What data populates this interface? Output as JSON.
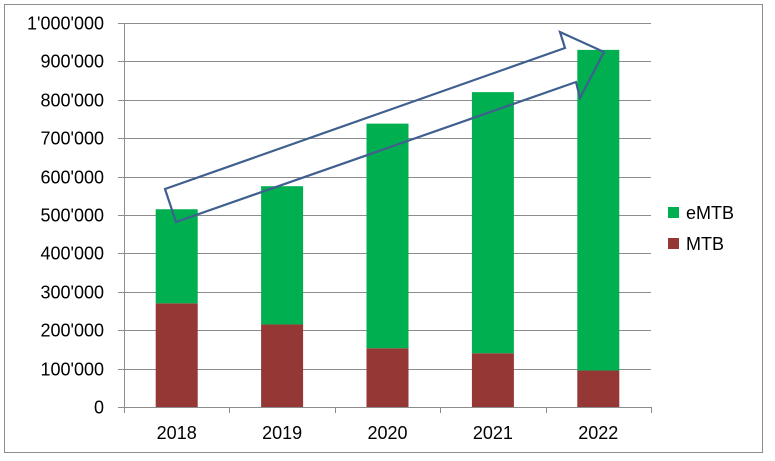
{
  "chart_data": {
    "type": "bar",
    "stacked": true,
    "title": "",
    "xlabel": "",
    "ylabel": "",
    "categories": [
      "2018",
      "2019",
      "2020",
      "2021",
      "2022"
    ],
    "series": [
      {
        "name": "MTB",
        "color": "#953735",
        "values": [
          270000,
          215000,
          153000,
          140000,
          95000
        ]
      },
      {
        "name": "eMTB",
        "color": "#00b050",
        "values": [
          245000,
          360000,
          585000,
          680000,
          835000
        ]
      }
    ],
    "ylim": [
      0,
      1000000
    ],
    "yticks": [
      0,
      100000,
      200000,
      300000,
      400000,
      500000,
      600000,
      700000,
      800000,
      900000,
      1000000
    ],
    "ytick_labels": [
      "0",
      "100'000",
      "200'000",
      "300'000",
      "400'000",
      "500'000",
      "600'000",
      "700'000",
      "800'000",
      "900'000",
      "1'000'000"
    ],
    "grid": true,
    "legend_position": "right",
    "legend_order": [
      "eMTB",
      "MTB"
    ],
    "annotation": "upward trend arrow from 2018 to 2022"
  }
}
